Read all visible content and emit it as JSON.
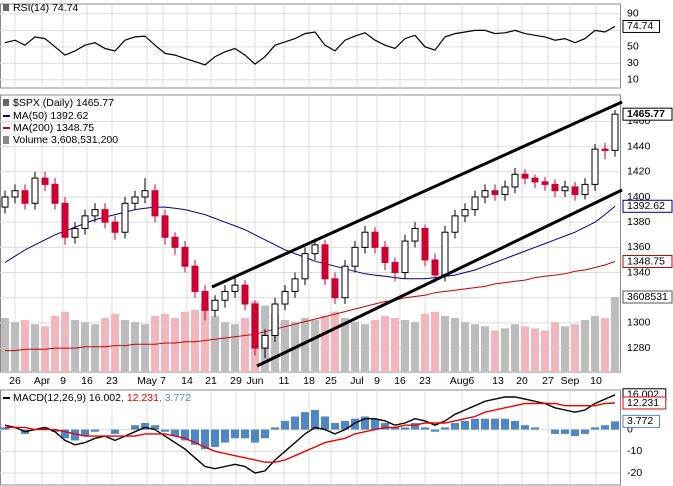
{
  "chart_data": [
    {
      "type": "line",
      "title": "RSI(14) 74.74",
      "series": [
        {
          "color": "#000000",
          "values": [
            55,
            58,
            52,
            62,
            60,
            50,
            40,
            45,
            52,
            55,
            48,
            45,
            58,
            62,
            63,
            52,
            42,
            40,
            36,
            32,
            28,
            38,
            44,
            48,
            40,
            29,
            38,
            52,
            56,
            60,
            66,
            68,
            52,
            45,
            58,
            63,
            67,
            58,
            52,
            48,
            60,
            64,
            50,
            46,
            62,
            66,
            68,
            70,
            70,
            66,
            67,
            70,
            66,
            64,
            62,
            58,
            60,
            55,
            60,
            70,
            68,
            74.74
          ]
        }
      ],
      "ylim": [
        0,
        102
      ],
      "yticks": [
        10,
        30,
        50,
        70,
        90
      ],
      "grid": true
    },
    {
      "type": "candlestick",
      "title": "$SPX (Daily) 1465.77",
      "up_color": "#000000",
      "down_color": "#cc0033",
      "open": [
        1392,
        1400,
        1405,
        1395,
        1415,
        1410,
        1395,
        1368,
        1375,
        1385,
        1390,
        1380,
        1372,
        1395,
        1400,
        1405,
        1385,
        1368,
        1360,
        1345,
        1325,
        1310,
        1318,
        1325,
        1330,
        1315,
        1280,
        1290,
        1315,
        1325,
        1335,
        1355,
        1362,
        1335,
        1320,
        1345,
        1360,
        1372,
        1360,
        1348,
        1340,
        1365,
        1375,
        1350,
        1338,
        1372,
        1385,
        1390,
        1400,
        1405,
        1402,
        1408,
        1418,
        1415,
        1412,
        1410,
        1405,
        1408,
        1402,
        1410,
        1438,
        1437
      ],
      "high": [
        1405,
        1410,
        1410,
        1420,
        1420,
        1415,
        1400,
        1380,
        1390,
        1395,
        1395,
        1385,
        1400,
        1405,
        1415,
        1410,
        1390,
        1372,
        1365,
        1350,
        1330,
        1322,
        1330,
        1336,
        1334,
        1318,
        1295,
        1320,
        1330,
        1340,
        1360,
        1367,
        1366,
        1340,
        1350,
        1365,
        1377,
        1376,
        1365,
        1352,
        1370,
        1380,
        1378,
        1355,
        1377,
        1390,
        1395,
        1405,
        1410,
        1410,
        1413,
        1423,
        1422,
        1418,
        1416,
        1414,
        1413,
        1412,
        1415,
        1442,
        1443,
        1469
      ],
      "low": [
        1387,
        1395,
        1390,
        1390,
        1405,
        1390,
        1362,
        1363,
        1370,
        1380,
        1375,
        1366,
        1367,
        1390,
        1395,
        1380,
        1362,
        1354,
        1340,
        1320,
        1302,
        1305,
        1312,
        1320,
        1310,
        1274,
        1272,
        1285,
        1310,
        1320,
        1330,
        1350,
        1330,
        1315,
        1315,
        1340,
        1355,
        1355,
        1342,
        1333,
        1335,
        1360,
        1345,
        1332,
        1333,
        1367,
        1380,
        1385,
        1395,
        1397,
        1397,
        1403,
        1410,
        1407,
        1405,
        1400,
        1400,
        1397,
        1398,
        1405,
        1430,
        1432
      ],
      "close": [
        1400,
        1405,
        1395,
        1415,
        1410,
        1395,
        1368,
        1375,
        1385,
        1390,
        1380,
        1372,
        1395,
        1400,
        1405,
        1385,
        1368,
        1360,
        1345,
        1325,
        1310,
        1318,
        1325,
        1330,
        1315,
        1280,
        1290,
        1315,
        1325,
        1335,
        1355,
        1362,
        1335,
        1320,
        1345,
        1360,
        1372,
        1360,
        1348,
        1340,
        1365,
        1375,
        1350,
        1338,
        1372,
        1385,
        1390,
        1400,
        1405,
        1402,
        1408,
        1418,
        1415,
        1412,
        1410,
        1405,
        1408,
        1402,
        1410,
        1438,
        1437,
        1465.77
      ],
      "series": [
        {
          "name": "MA(50) 1392.62",
          "color": "#000080",
          "values": [
            1348,
            1353,
            1358,
            1362,
            1366,
            1370,
            1373,
            1376,
            1379,
            1382,
            1384,
            1386,
            1388,
            1390,
            1391,
            1392,
            1392,
            1391,
            1390,
            1388,
            1386,
            1383,
            1380,
            1377,
            1374,
            1370,
            1366,
            1362,
            1358,
            1355,
            1352,
            1349,
            1347,
            1345,
            1343,
            1341,
            1339,
            1338,
            1337,
            1336,
            1335,
            1335,
            1335,
            1336,
            1337,
            1338,
            1340,
            1342,
            1345,
            1348,
            1351,
            1354,
            1357,
            1360,
            1363,
            1366,
            1369,
            1372,
            1376,
            1380,
            1386,
            1392.62
          ]
        },
        {
          "name": "MA(200) 1348.75",
          "color": "#cc0000",
          "values": [
            1278,
            1278,
            1279,
            1279,
            1279,
            1280,
            1280,
            1280,
            1281,
            1281,
            1281,
            1282,
            1282,
            1283,
            1283,
            1283,
            1284,
            1284,
            1285,
            1285,
            1286,
            1287,
            1288,
            1289,
            1290,
            1291,
            1293,
            1295,
            1297,
            1299,
            1301,
            1303,
            1305,
            1307,
            1309,
            1311,
            1313,
            1315,
            1317,
            1318,
            1320,
            1321,
            1322,
            1324,
            1325,
            1326,
            1327,
            1328,
            1329,
            1331,
            1332,
            1333,
            1334,
            1336,
            1337,
            1338,
            1339,
            1341,
            1342,
            1344,
            1346,
            1348.75
          ]
        }
      ],
      "volume": {
        "name": "Volume 3,608,531,200",
        "last_label": "3608531",
        "up_color": "#bdbdbd",
        "down_color": "#f2b6be",
        "ylim": [
          0,
          13330000
        ],
        "values": [
          2600000,
          2400000,
          2500000,
          2300000,
          2200000,
          2700000,
          2900000,
          2500000,
          2400000,
          2300000,
          2600000,
          2800000,
          2500000,
          2400000,
          2300000,
          2700000,
          2800000,
          2600000,
          2900000,
          3000000,
          3300000,
          2700000,
          2400000,
          2300000,
          2600000,
          3400000,
          3200000,
          2800000,
          2500000,
          2400000,
          2600000,
          2500000,
          2700000,
          2900000,
          2600000,
          2400000,
          2300000,
          2500000,
          2700000,
          2600000,
          2500000,
          2400000,
          2800000,
          2900000,
          2700000,
          2600000,
          2400000,
          2300000,
          2200000,
          2000000,
          2100000,
          2300000,
          2200000,
          2100000,
          2000000,
          2400000,
          2200000,
          2300000,
          2500000,
          2700000,
          2600000,
          3608531.2
        ]
      },
      "ylim": [
        1261,
        1481
      ],
      "yticks": [
        1280,
        1300,
        1320,
        1340,
        1360,
        1380,
        1400,
        1420,
        1440,
        1460
      ],
      "xticks": [
        {
          "value": 1.0,
          "label": "26"
        },
        {
          "value": 3.7,
          "label": "Apr"
        },
        {
          "value": 5.8,
          "label": "9"
        },
        {
          "value": 8.2,
          "label": "16"
        },
        {
          "value": 10.7,
          "label": "23"
        },
        {
          "value": 14.2,
          "label": "May"
        },
        {
          "value": 15.8,
          "label": "7"
        },
        {
          "value": 18.2,
          "label": "14"
        },
        {
          "value": 20.6,
          "label": "21"
        },
        {
          "value": 23.1,
          "label": "29"
        },
        {
          "value": 25.0,
          "label": "Jun"
        },
        {
          "value": 27.9,
          "label": "11"
        },
        {
          "value": 30.4,
          "label": "18"
        },
        {
          "value": 32.6,
          "label": "25"
        },
        {
          "value": 35.2,
          "label": "Jul"
        },
        {
          "value": 37.2,
          "label": "9"
        },
        {
          "value": 39.5,
          "label": "16"
        },
        {
          "value": 42.0,
          "label": "23"
        },
        {
          "value": 45.7,
          "label": "Aug6"
        },
        {
          "value": 49.3,
          "label": "13"
        },
        {
          "value": 51.7,
          "label": "20"
        },
        {
          "value": 54.3,
          "label": "27"
        },
        {
          "value": 56.5,
          "label": "Sep"
        },
        {
          "value": 59.1,
          "label": "10"
        }
      ],
      "grid": true
    },
    {
      "type": "macd",
      "title": [
        "MACD(12,26,9) 16.002",
        ", 12.231",
        ", 3.772"
      ],
      "series": [
        {
          "color": "#000000",
          "values": [
            2,
            1,
            -1,
            0,
            1,
            -1,
            -5,
            -7,
            -6,
            -4,
            -3,
            -5,
            -3,
            -1,
            1,
            0,
            -3,
            -6,
            -9,
            -13,
            -17,
            -18,
            -17,
            -16,
            -17,
            -20,
            -19,
            -14,
            -10,
            -6,
            -2,
            1,
            0,
            -2,
            0,
            3,
            5,
            5,
            4,
            2,
            3,
            5,
            4,
            2,
            4,
            7,
            9,
            11,
            13,
            14,
            15,
            15,
            14,
            13,
            12,
            10,
            9,
            8,
            9,
            12,
            14,
            16.002
          ]
        },
        {
          "color": "#ee0000",
          "values": [
            1,
            1,
            1,
            0,
            0,
            0,
            -1,
            -2,
            -3,
            -3,
            -3,
            -3,
            -3,
            -3,
            -2,
            -2,
            -2,
            -3,
            -4,
            -6,
            -8,
            -10,
            -11,
            -12,
            -13,
            -14,
            -15,
            -15,
            -14,
            -12,
            -10,
            -8,
            -6,
            -5,
            -4,
            -2,
            -1,
            0,
            1,
            1,
            2,
            2,
            3,
            3,
            3,
            4,
            5,
            6,
            8,
            9,
            10,
            11,
            12,
            12,
            12,
            12,
            11,
            11,
            11,
            11,
            12,
            12.231
          ]
        }
      ],
      "histogram": {
        "color": "#4f86c6",
        "values": [
          1,
          0,
          -2,
          0,
          1,
          -1,
          -4,
          -5,
          -3,
          -1,
          0,
          -2,
          0,
          2,
          3,
          2,
          -1,
          -3,
          -5,
          -7,
          -9,
          -8,
          -6,
          -4,
          -4,
          -6,
          -4,
          1,
          4,
          6,
          8,
          9,
          6,
          3,
          4,
          5,
          6,
          5,
          3,
          1,
          1,
          3,
          1,
          -1,
          1,
          3,
          4,
          5,
          5,
          5,
          5,
          4,
          2,
          1,
          0,
          -2,
          -2,
          -3,
          -2,
          1,
          2,
          3.772
        ]
      },
      "ylim": [
        -25.5,
        18.2
      ],
      "yticks": [
        -20,
        -10,
        0
      ],
      "grid": true
    }
  ]
}
